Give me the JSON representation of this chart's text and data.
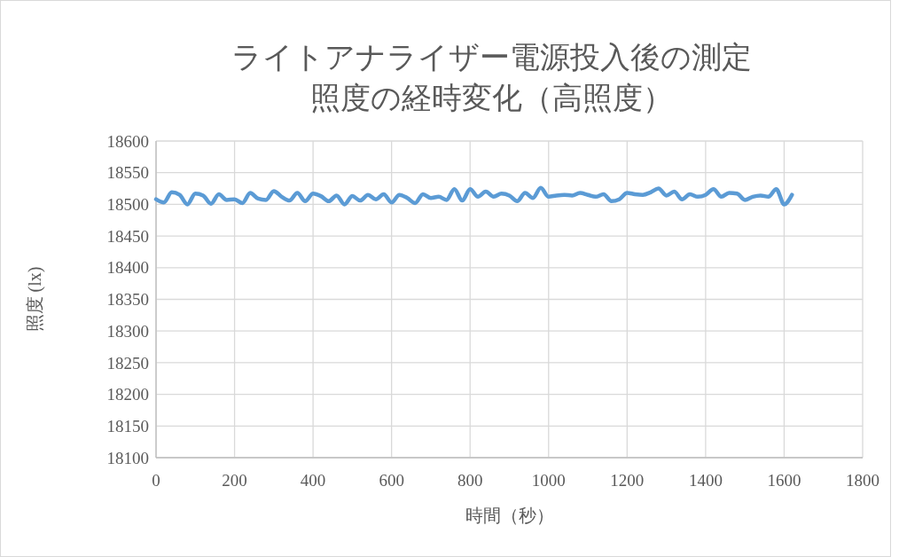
{
  "chart_data": {
    "type": "line",
    "title": "ライトアナライザー電源投入後の測定",
    "subtitle": "照度の経時変化（高照度）",
    "xlabel": "時間（秒）",
    "ylabel": "照度 (lx)",
    "x": [
      0,
      20,
      40,
      60,
      80,
      100,
      120,
      140,
      160,
      180,
      200,
      220,
      240,
      260,
      280,
      300,
      320,
      340,
      360,
      380,
      400,
      420,
      440,
      460,
      480,
      500,
      520,
      540,
      560,
      580,
      600,
      620,
      640,
      660,
      680,
      700,
      720,
      740,
      760,
      780,
      800,
      820,
      840,
      860,
      880,
      900,
      920,
      940,
      960,
      980,
      1000,
      1020,
      1040,
      1060,
      1080,
      1100,
      1120,
      1140,
      1160,
      1180,
      1200,
      1220,
      1240,
      1260,
      1280,
      1300,
      1320,
      1340,
      1360,
      1380,
      1400,
      1420,
      1440,
      1460,
      1480,
      1500,
      1520,
      1540,
      1560,
      1580,
      1600,
      1620
    ],
    "series": [
      {
        "color": "#5b9bd5",
        "values": [
          18508,
          18503,
          18519,
          18515,
          18500,
          18517,
          18514,
          18501,
          18516,
          18507,
          18508,
          18502,
          18518,
          18509,
          18507,
          18521,
          18512,
          18506,
          18518,
          18505,
          18517,
          18513,
          18505,
          18514,
          18500,
          18513,
          18506,
          18515,
          18508,
          18516,
          18503,
          18515,
          18510,
          18502,
          18516,
          18510,
          18512,
          18507,
          18524,
          18506,
          18524,
          18512,
          18520,
          18512,
          18517,
          18514,
          18505,
          18518,
          18510,
          18526,
          18512,
          18514,
          18515,
          18514,
          18518,
          18515,
          18512,
          18516,
          18505,
          18508,
          18518,
          18516,
          18515,
          18519,
          18525,
          18514,
          18520,
          18508,
          18516,
          18512,
          18515,
          18524,
          18512,
          18518,
          18517,
          18507,
          18512,
          18514,
          18512,
          18524,
          18500,
          18515
        ]
      }
    ],
    "xlim": [
      0,
      1800
    ],
    "xticks": [
      0,
      200,
      400,
      600,
      800,
      1000,
      1200,
      1400,
      1600,
      1800
    ],
    "ylim": [
      18100,
      18600
    ],
    "yticks": [
      18100,
      18150,
      18200,
      18250,
      18300,
      18350,
      18400,
      18450,
      18500,
      18550,
      18600
    ],
    "grid": true,
    "marker": "none",
    "line_style": "solid"
  }
}
